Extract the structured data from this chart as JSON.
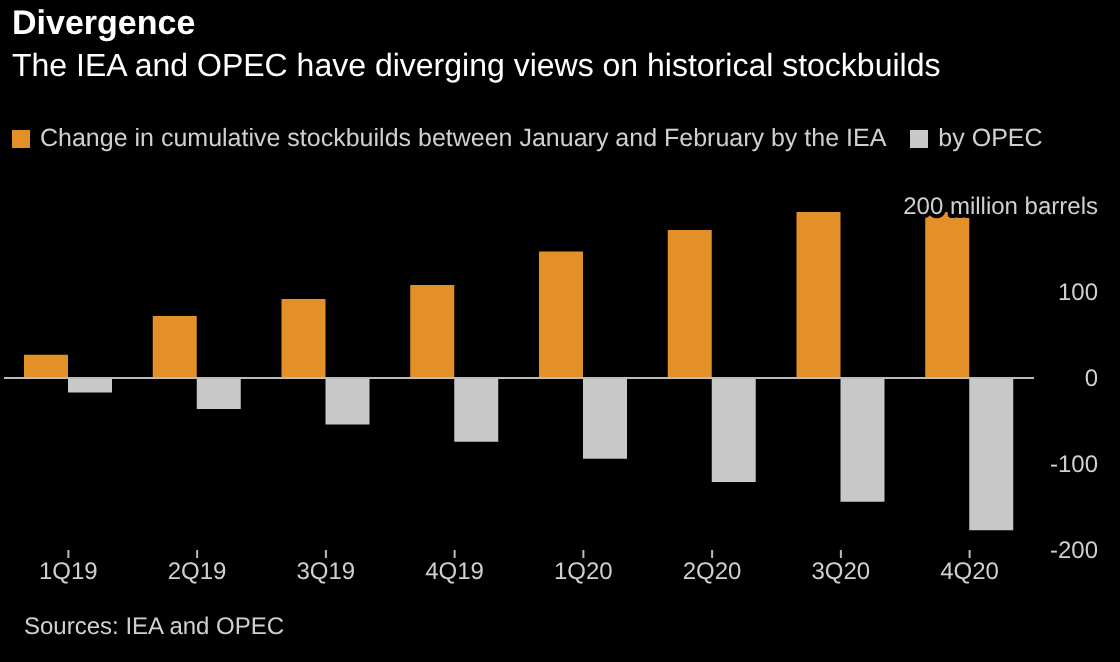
{
  "chart_data": {
    "type": "bar",
    "title": "Divergence",
    "subtitle": "The IEA and OPEC have diverging views on historical stockbuilds",
    "categories": [
      "1Q19",
      "2Q19",
      "3Q19",
      "4Q19",
      "1Q20",
      "2Q20",
      "3Q20",
      "4Q20"
    ],
    "series": [
      {
        "name": "Change in cumulative stockbuilds between January and February by the IEA",
        "color": "#e39029",
        "values": [
          27,
          72,
          92,
          108,
          147,
          172,
          193,
          193
        ]
      },
      {
        "name": "by OPEC",
        "color": "#c8c8c8",
        "values": [
          -17,
          -36,
          -54,
          -74,
          -94,
          -121,
          -144,
          -177
        ]
      }
    ],
    "ylim": [
      -200,
      200
    ],
    "yticks": [
      -200,
      -100,
      0,
      100,
      {
        "value": 200,
        "label": "200 million barrels"
      }
    ],
    "ref_lines": [
      {
        "axis": "y",
        "value": 0,
        "color": "#bbbbbb"
      }
    ],
    "legend": "top left",
    "annotations": [
      "Sources: IEA and OPEC"
    ]
  }
}
